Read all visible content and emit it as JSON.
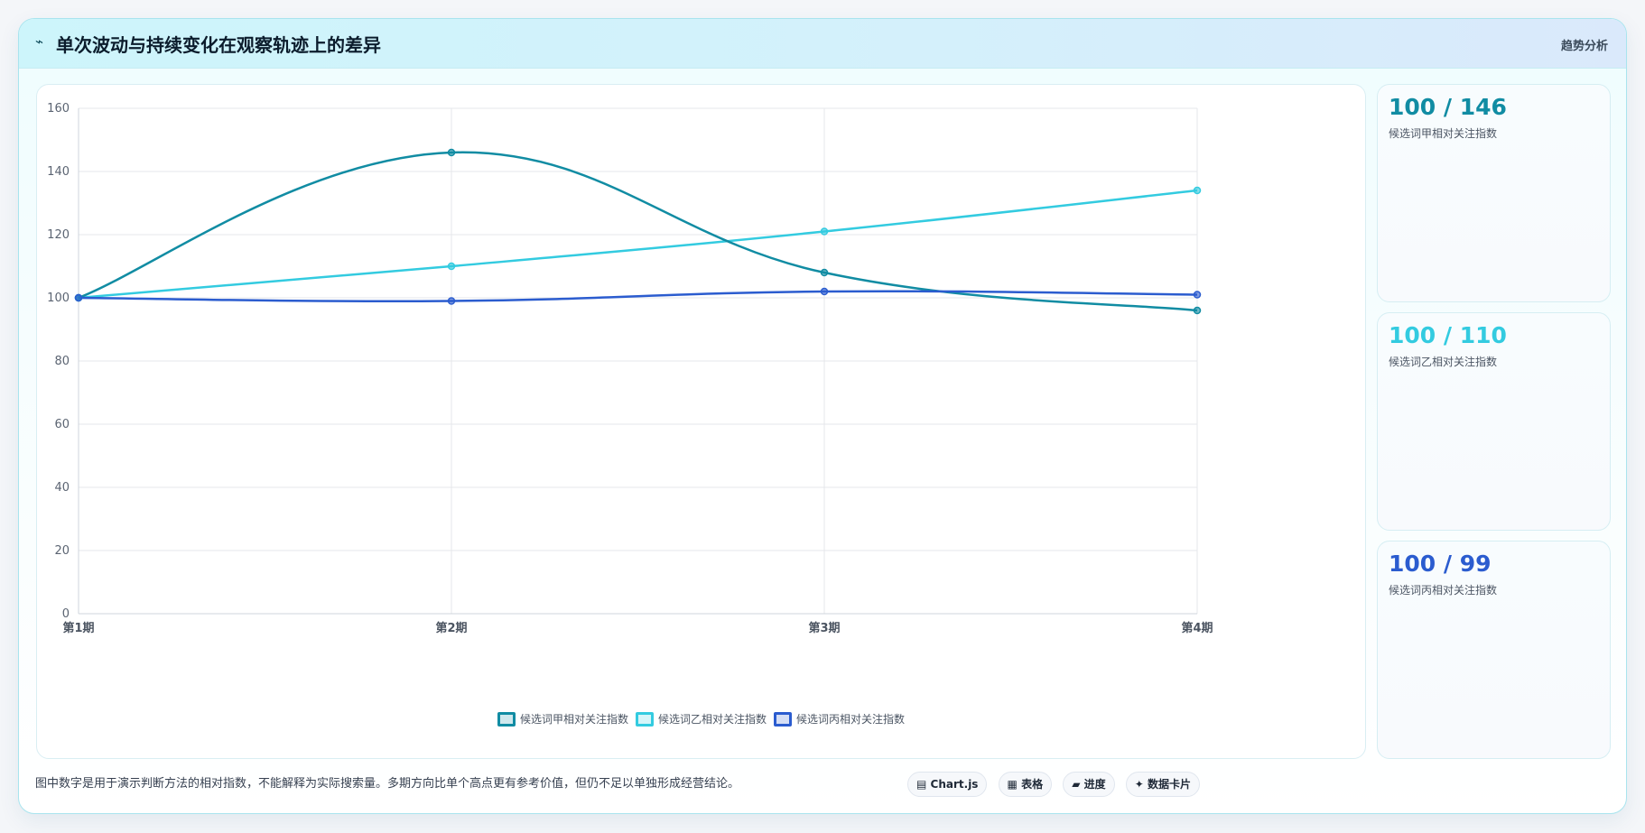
{
  "header": {
    "icon": "chart-line-icon",
    "icon_glyph": "⌁",
    "title": "单次波动与持续变化在观察轨迹上的差异",
    "tag": "趋势分析"
  },
  "colors": {
    "series_a": "#118ca3",
    "series_b": "#33cbe0",
    "series_c": "#2b5ccf"
  },
  "chart_data": {
    "type": "line",
    "title": "",
    "xlabel": "",
    "ylabel": "",
    "categories": [
      "第1期",
      "第2期",
      "第3期",
      "第4期"
    ],
    "ylim": [
      0,
      160
    ],
    "yticks": [
      0,
      20,
      40,
      60,
      80,
      100,
      120,
      140,
      160
    ],
    "grid": true,
    "legend": "bottom",
    "series": [
      {
        "name": "候选词甲相对关注指数",
        "values": [
          100,
          146,
          108,
          96
        ],
        "color": "#118ca3"
      },
      {
        "name": "候选词乙相对关注指数",
        "values": [
          100,
          110,
          121,
          134
        ],
        "color": "#33cbe0"
      },
      {
        "name": "候选词丙相对关注指数",
        "values": [
          100,
          99,
          102,
          101
        ],
        "color": "#2b5ccf"
      }
    ]
  },
  "stats": [
    {
      "value": "100 / 146",
      "label": "候选词甲相对关注指数",
      "color": "#118ca3"
    },
    {
      "value": "100 / 110",
      "label": "候选词乙相对关注指数",
      "color": "#33cbe0"
    },
    {
      "value": "100 / 99",
      "label": "候选词丙相对关注指数",
      "color": "#2b5ccf"
    }
  ],
  "footnote": "图中数字是用于演示判断方法的相对指数，不能解释为实际搜索量。多期方向比单个高点更有参考价值，但仍不足以单独形成经营结论。",
  "chips": [
    {
      "icon": "chart-icon",
      "glyph": "▤",
      "label": "Chart.js"
    },
    {
      "icon": "table-icon",
      "glyph": "▦",
      "label": "表格"
    },
    {
      "icon": "progress-icon",
      "glyph": "▰",
      "label": "进度"
    },
    {
      "icon": "sparkle-icon",
      "glyph": "✦",
      "label": "数据卡片"
    }
  ]
}
